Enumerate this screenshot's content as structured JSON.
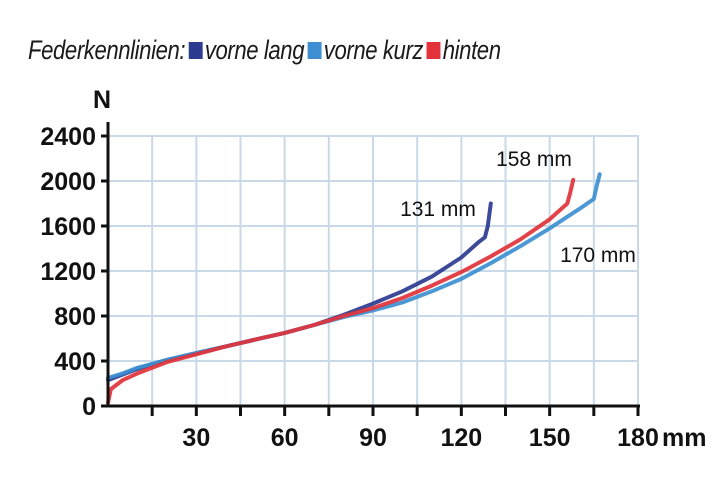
{
  "chart_data": {
    "type": "line",
    "title": "Federkennlinien:",
    "ylabel": "N",
    "xlabel": "mm",
    "xlim": [
      0,
      180
    ],
    "ylim": [
      0,
      2400
    ],
    "x_ticks": [
      30,
      60,
      90,
      120,
      150,
      180
    ],
    "y_ticks": [
      0,
      400,
      800,
      1200,
      1600,
      2000,
      2400
    ],
    "grid": true,
    "legend_position": "top",
    "series": [
      {
        "name": "vorne lang",
        "color": "#2b3b8f",
        "points": [
          [
            0,
            230
          ],
          [
            5,
            280
          ],
          [
            10,
            330
          ],
          [
            20,
            410
          ],
          [
            30,
            470
          ],
          [
            40,
            530
          ],
          [
            50,
            590
          ],
          [
            60,
            650
          ],
          [
            70,
            720
          ],
          [
            80,
            810
          ],
          [
            90,
            910
          ],
          [
            100,
            1020
          ],
          [
            110,
            1150
          ],
          [
            120,
            1320
          ],
          [
            126,
            1460
          ],
          [
            128,
            1500
          ],
          [
            129,
            1600
          ],
          [
            130,
            1800
          ]
        ]
      },
      {
        "name": "vorne kurz",
        "color": "#3d8fd1",
        "points": [
          [
            0,
            250
          ],
          [
            5,
            290
          ],
          [
            10,
            340
          ],
          [
            20,
            410
          ],
          [
            30,
            470
          ],
          [
            40,
            530
          ],
          [
            50,
            590
          ],
          [
            60,
            650
          ],
          [
            70,
            720
          ],
          [
            80,
            790
          ],
          [
            90,
            850
          ],
          [
            100,
            920
          ],
          [
            110,
            1020
          ],
          [
            120,
            1130
          ],
          [
            130,
            1270
          ],
          [
            140,
            1420
          ],
          [
            150,
            1580
          ],
          [
            160,
            1750
          ],
          [
            165,
            1840
          ],
          [
            166,
            1960
          ],
          [
            167,
            2060
          ]
        ]
      },
      {
        "name": "hinten",
        "color": "#e2323a",
        "points": [
          [
            0,
            30
          ],
          [
            1,
            150
          ],
          [
            5,
            230
          ],
          [
            10,
            290
          ],
          [
            20,
            390
          ],
          [
            30,
            460
          ],
          [
            40,
            530
          ],
          [
            50,
            590
          ],
          [
            60,
            650
          ],
          [
            70,
            720
          ],
          [
            80,
            800
          ],
          [
            90,
            870
          ],
          [
            100,
            960
          ],
          [
            110,
            1070
          ],
          [
            120,
            1190
          ],
          [
            130,
            1330
          ],
          [
            140,
            1480
          ],
          [
            150,
            1660
          ],
          [
            156,
            1800
          ],
          [
            157,
            1900
          ],
          [
            158,
            2010
          ]
        ]
      }
    ],
    "annotations": [
      {
        "text": "131 mm",
        "series": "vorne lang"
      },
      {
        "text": "158 mm",
        "series": "hinten"
      },
      {
        "text": "170 mm",
        "series": "vorne kurz"
      }
    ],
    "x_axis_unit": "mm"
  }
}
